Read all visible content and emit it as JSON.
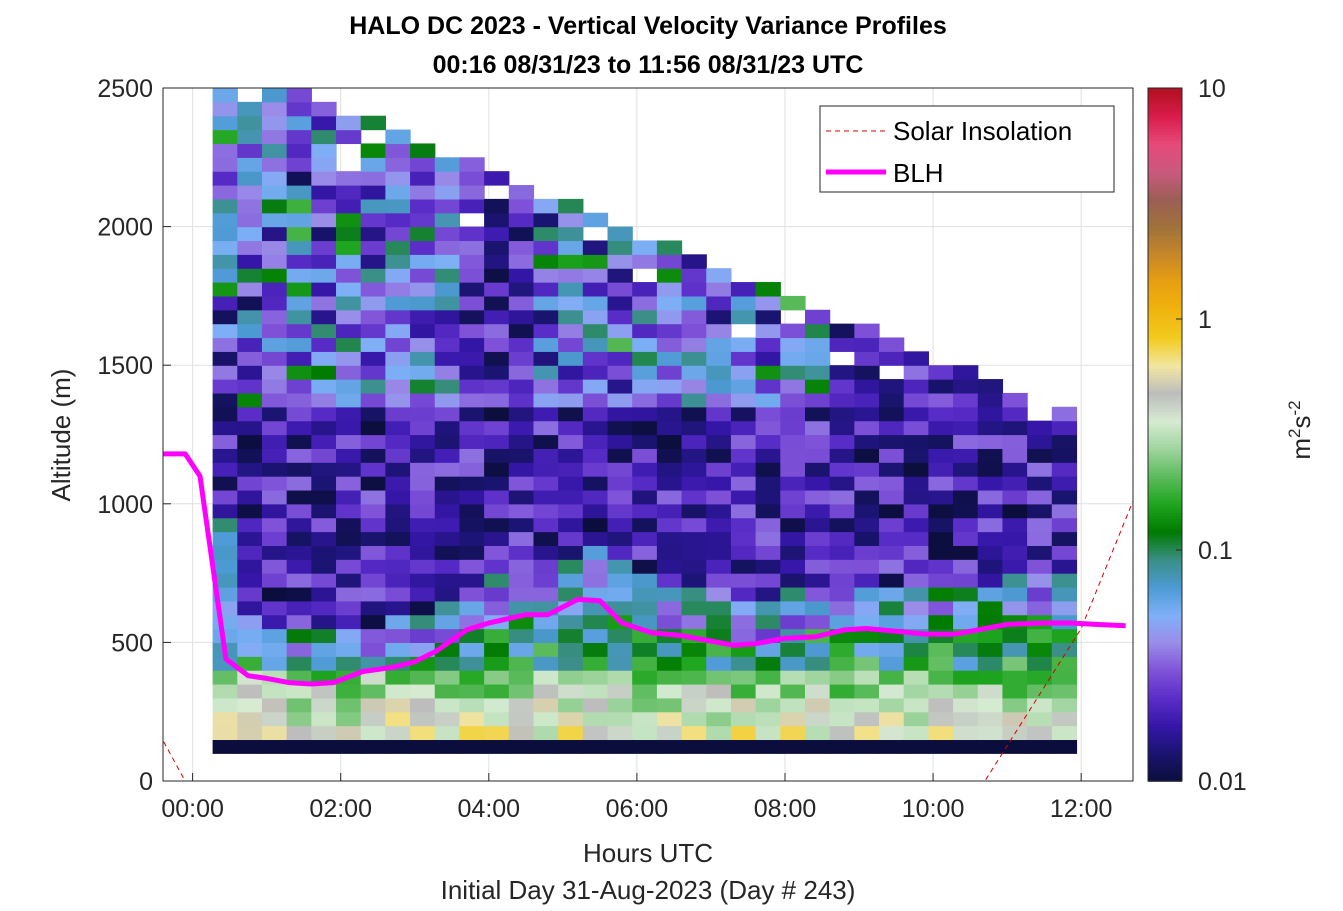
{
  "chart_data": {
    "type": "heatmap",
    "title": "HALO DC 2023 - Vertical Velocity Variance Profiles",
    "subtitle": "00:16 08/31/23 to 11:56 08/31/23  UTC",
    "xlabel": "Hours UTC",
    "xlabel2": "Initial Day 31-Aug-2023 (Day # 243)",
    "ylabel": "Altitude (m)",
    "xlim": [
      -0.4,
      12.7
    ],
    "ylim": [
      0,
      2500
    ],
    "x_ticks": [
      0,
      2,
      4,
      6,
      8,
      10,
      12
    ],
    "x_tick_labels": [
      "00:00",
      "02:00",
      "04:00",
      "06:00",
      "08:00",
      "10:00",
      "12:00"
    ],
    "y_ticks": [
      0,
      500,
      1000,
      1500,
      2000,
      2500
    ],
    "y_tick_labels": [
      "0",
      "500",
      "1000",
      "1500",
      "2000",
      "2500"
    ],
    "grid": true,
    "legend_position": "top-right",
    "colorbar": {
      "scale": "log",
      "range": [
        0.01,
        10
      ],
      "ticks": [
        0.01,
        0.1,
        1,
        10
      ],
      "tick_labels": [
        "0.01",
        "0.1",
        "1",
        "10"
      ],
      "label": "m",
      "label_sup1": "2",
      "label_mid": "s",
      "label_sup2": "-2"
    },
    "heatmap": {
      "description": "Time-altitude grid of vertical velocity variance (m^2 s^-2), log colour scale",
      "time_start_hours": 0.27,
      "time_end_hours": 11.93,
      "bin_minutes": 20,
      "altitude_bin_m": 50,
      "altitude_max_valid_m_by_time": "decreasing from about 2500 m near 01:00 to about 1250 m near 12:00",
      "near_surface_low": "values below 0.01 in the lowest bin (about 100 m)",
      "boundary_layer": "values about 0.3-1 below 400 m; 0.05-0.3 below the BLH",
      "free_troposphere": "values 0.01-0.03 above the BLH"
    },
    "series": [
      {
        "name": "Solar Insolation",
        "style": "dashed",
        "color": "#d40000",
        "x": [
          -0.45,
          -0.1,
          0.0,
          10.7,
          12.0,
          12.7
        ],
        "y": [
          170,
          0,
          0,
          0,
          550,
          1010
        ]
      },
      {
        "name": "BLH",
        "style": "solid",
        "color": "#ff00ff",
        "x": [
          -0.4,
          -0.1,
          0.1,
          0.45,
          0.75,
          1.0,
          1.3,
          1.6,
          1.9,
          2.3,
          2.7,
          3.0,
          3.3,
          3.7,
          4.0,
          4.5,
          4.8,
          5.2,
          5.5,
          5.8,
          6.2,
          6.6,
          7.0,
          7.3,
          7.6,
          8.0,
          8.4,
          8.8,
          9.1,
          9.5,
          9.9,
          10.3,
          10.6,
          11.0,
          11.5,
          11.85,
          12.2,
          12.6
        ],
        "y": [
          1180,
          1180,
          1100,
          440,
          380,
          370,
          355,
          350,
          355,
          395,
          410,
          430,
          470,
          545,
          570,
          600,
          600,
          655,
          650,
          570,
          535,
          525,
          505,
          490,
          495,
          515,
          520,
          545,
          550,
          540,
          530,
          530,
          545,
          565,
          570,
          570,
          565,
          560
        ]
      }
    ],
    "colors": {
      "blh": "#ff00ff",
      "solar": "#d40000",
      "colormap": [
        "#0b0e3c",
        "#1a1470",
        "#3516a8",
        "#5a2dc8",
        "#7f52d8",
        "#9a8ce8",
        "#7fb0f7",
        "#4d9ad5",
        "#3a8f86",
        "#007a00",
        "#1fa51f",
        "#5cbb5c",
        "#9fd49f",
        "#d6ebd2",
        "#bdbdbd",
        "#f2e6a0",
        "#f2cb1f",
        "#f0b40f",
        "#e8a010",
        "#c7872a",
        "#a0723a",
        "#9b5f55",
        "#c9597f",
        "#e64a7a",
        "#d91c4a",
        "#b21020"
      ]
    }
  }
}
